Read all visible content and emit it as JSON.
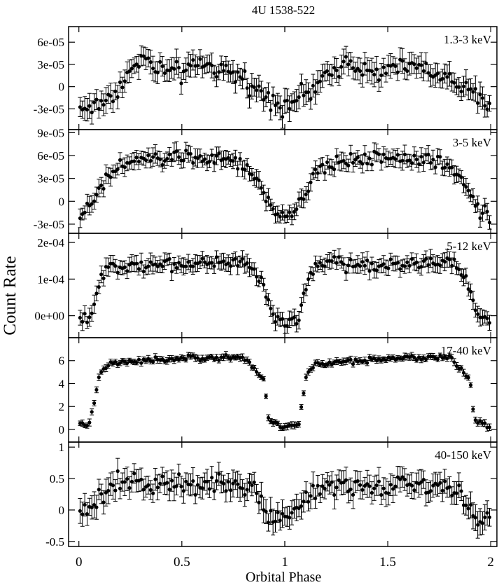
{
  "figure": {
    "title": "4U 1538-522",
    "xlabel": "Orbital Phase",
    "ylabel": "Count Rate",
    "x_ticks": [
      {
        "v": 0,
        "label": "0"
      },
      {
        "v": 0.5,
        "label": "0.5"
      },
      {
        "v": 1,
        "label": "1"
      },
      {
        "v": 1.5,
        "label": "1.5"
      },
      {
        "v": 2,
        "label": "2"
      }
    ]
  },
  "chart_data": [
    {
      "type": "scatter",
      "label": "1.3-3 keV",
      "xlim": [
        -0.05,
        2.03
      ],
      "ylim": [
        -5.8e-05,
        8.1e-05
      ],
      "ticks": [
        {
          "v": 6e-05,
          "label": "6e-05"
        },
        {
          "v": 3e-05,
          "label": "3e-05"
        },
        {
          "v": 0,
          "label": "0"
        },
        {
          "v": -3e-05,
          "label": "-3e-05"
        }
      ],
      "phase": [
        0.0,
        0.1,
        0.2,
        0.3,
        0.4,
        0.5,
        0.6,
        0.7,
        0.8,
        0.9,
        1.0,
        1.1,
        1.2,
        1.3,
        1.4,
        1.5,
        1.6,
        1.7,
        1.8,
        1.9,
        2.0
      ],
      "profile": [
        -3e-05,
        -2.5e-05,
        0,
        4e-05,
        2e-05,
        2e-05,
        3e-05,
        2e-05,
        1e-05,
        -1e-05,
        -2.5e-05,
        -1e-05,
        1e-05,
        4e-05,
        2e-05,
        2e-05,
        3e-05,
        2e-05,
        1e-05,
        -1e-05,
        -2.5e-05
      ],
      "err": 1.4e-05
    },
    {
      "type": "scatter",
      "label": "3-5 keV",
      "xlim": [
        -0.05,
        2.03
      ],
      "ylim": [
        -4.2e-05,
        9.4e-05
      ],
      "ticks": [
        {
          "v": 9e-05,
          "label": "9e-05"
        },
        {
          "v": 6e-05,
          "label": "6e-05"
        },
        {
          "v": 3e-05,
          "label": "3e-05"
        },
        {
          "v": 0,
          "label": "0"
        },
        {
          "v": -3e-05,
          "label": "-3e-05"
        }
      ],
      "phase": [
        0.0,
        0.05,
        0.1,
        0.15,
        0.2,
        0.3,
        0.4,
        0.5,
        0.6,
        0.7,
        0.8,
        0.85,
        0.9,
        0.95,
        1.0,
        1.05,
        1.1,
        1.15,
        1.2,
        1.3,
        1.4,
        1.5,
        1.6,
        1.7,
        1.8,
        1.85,
        1.9,
        1.95,
        2.0
      ],
      "profile": [
        -1.8e-05,
        -1e-05,
        1.5e-05,
        3.5e-05,
        4.5e-05,
        5.5e-05,
        5.5e-05,
        6e-05,
        5.5e-05,
        5.5e-05,
        4.5e-05,
        3.5e-05,
        1e-05,
        -1.5e-05,
        -2e-05,
        -1.5e-05,
        1e-05,
        3.5e-05,
        4.5e-05,
        5.5e-05,
        5.5e-05,
        6e-05,
        5.5e-05,
        5.5e-05,
        4.5e-05,
        3.5e-05,
        1e-05,
        -1e-05,
        -2e-05
      ],
      "err": 1e-05
    },
    {
      "type": "scatter",
      "label": "5-12 keV",
      "xlim": [
        -0.05,
        2.03
      ],
      "ylim": [
        -6e-05,
        0.000225
      ],
      "ticks": [
        {
          "v": 0.0002,
          "label": "2e-04"
        },
        {
          "v": 0.0001,
          "label": "1e-04"
        },
        {
          "v": 0,
          "label": "0e+00"
        }
      ],
      "phase": [
        0.0,
        0.05,
        0.07,
        0.1,
        0.15,
        0.5,
        0.8,
        0.85,
        0.9,
        0.93,
        1.0,
        1.07,
        1.1,
        1.15,
        1.5,
        1.8,
        1.85,
        1.9,
        1.93,
        2.0
      ],
      "profile": [
        -2e-05,
        0,
        2e-05,
        8e-05,
        0.00014,
        0.00014,
        0.00015,
        0.00013,
        7e-05,
        1e-05,
        -2e-05,
        -1e-05,
        8e-05,
        0.00014,
        0.00014,
        0.00015,
        0.00013,
        7e-05,
        1e-05,
        -2e-05
      ],
      "err": 2e-05
    },
    {
      "type": "scatter",
      "label": "17-40 keV",
      "xlim": [
        -0.05,
        2.03
      ],
      "ylim": [
        -1.1,
        8.0
      ],
      "ticks": [
        {
          "v": 6,
          "label": "6"
        },
        {
          "v": 4,
          "label": "4"
        },
        {
          "v": 2,
          "label": "2"
        },
        {
          "v": 0,
          "label": "0"
        }
      ],
      "phase": [
        0.0,
        0.05,
        0.07,
        0.1,
        0.15,
        0.5,
        0.8,
        0.85,
        0.9,
        0.92,
        1.0,
        1.07,
        1.1,
        1.15,
        1.5,
        1.8,
        1.85,
        1.9,
        1.92,
        2.0
      ],
      "profile": [
        0.3,
        0.5,
        2.0,
        4.8,
        5.7,
        6.2,
        6.3,
        5.3,
        4.3,
        0.8,
        0.2,
        0.5,
        4.5,
        5.7,
        6.2,
        6.3,
        5.3,
        4.3,
        0.8,
        0.2
      ],
      "err": 0.25
    },
    {
      "type": "scatter",
      "label": "40-150 keV",
      "xlim": [
        -0.05,
        2.03
      ],
      "ylim": [
        -0.58,
        1.08
      ],
      "ticks": [
        {
          "v": 1,
          "label": "1"
        },
        {
          "v": 0.5,
          "label": "0.5"
        },
        {
          "v": 0,
          "label": "0"
        },
        {
          "v": -0.5,
          "label": "-0.5"
        }
      ],
      "phase": [
        0.0,
        0.05,
        0.1,
        0.15,
        0.2,
        0.5,
        0.8,
        0.85,
        0.9,
        0.95,
        1.0,
        1.05,
        1.1,
        1.15,
        1.2,
        1.5,
        1.8,
        1.85,
        1.9,
        1.95,
        2.0
      ],
      "profile": [
        -0.05,
        0.0,
        0.2,
        0.35,
        0.4,
        0.4,
        0.4,
        0.3,
        0.0,
        -0.15,
        -0.05,
        0.0,
        0.2,
        0.35,
        0.4,
        0.4,
        0.4,
        0.3,
        0.0,
        -0.15,
        -0.05
      ],
      "err": 0.18
    }
  ]
}
